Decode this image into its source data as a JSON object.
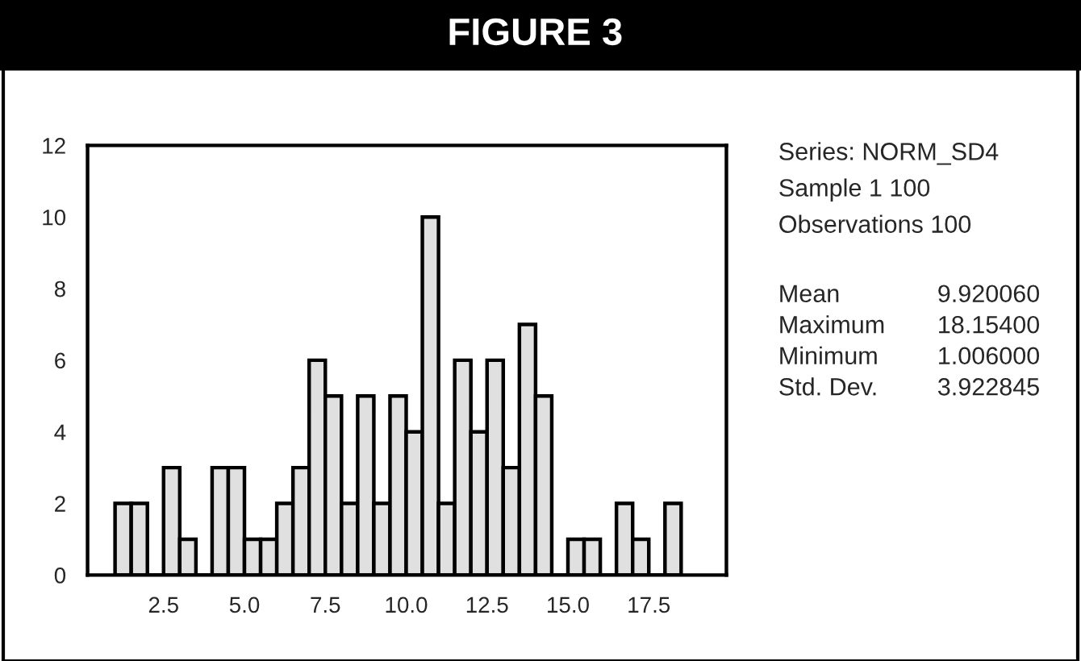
{
  "chart_data": {
    "type": "histogram",
    "title": "FIGURE 3",
    "bins": [
      1.0,
      1.5,
      2.0,
      2.5,
      3.0,
      3.5,
      4.0,
      4.5,
      5.0,
      5.5,
      6.0,
      6.5,
      7.0,
      7.5,
      8.0,
      8.5,
      9.0,
      9.5,
      10.0,
      10.5,
      11.0,
      11.5,
      12.0,
      12.5,
      13.0,
      13.5,
      14.0,
      14.5,
      15.0,
      15.5,
      16.0,
      16.5,
      17.0,
      17.5,
      18.0,
      18.5
    ],
    "values": [
      2,
      2,
      0,
      3,
      1,
      0,
      3,
      3,
      1,
      1,
      2,
      3,
      6,
      5,
      2,
      5,
      2,
      5,
      4,
      10,
      2,
      6,
      4,
      6,
      3,
      7,
      5,
      0,
      1,
      1,
      0,
      2,
      1,
      0,
      2
    ],
    "color": "#e0e0e0",
    "xlim": [
      0.15,
      19.9
    ],
    "xticks": [
      2.5,
      {
        "value": 5,
        "label": "5.0"
      },
      7.5,
      {
        "value": 10,
        "label": "10.0"
      },
      12.5,
      {
        "value": 15,
        "label": "15.0"
      },
      17.5
    ],
    "ylim": [
      0,
      12
    ],
    "yticks": [
      0,
      2,
      4,
      6,
      8,
      10,
      12
    ],
    "grid": false,
    "annotations": [
      "Series: NORM_SD4",
      "Sample 1 100",
      "Observations 100",
      "Mean",
      "9.920060",
      "Maximum",
      "18.15400",
      "Minimum",
      "1.006000",
      "Std. Dev.",
      "3.922845"
    ]
  }
}
